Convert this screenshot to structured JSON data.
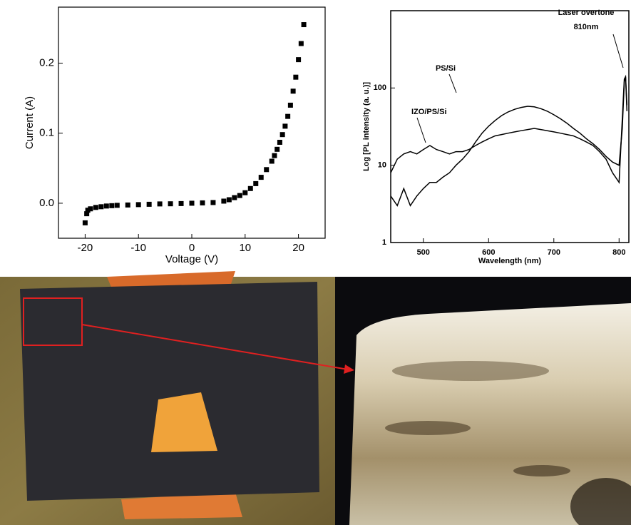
{
  "chart_data": [
    {
      "type": "scatter",
      "x_label": "Voltage (V)",
      "y_label": "Current (A)",
      "x": [
        -20,
        -19.7,
        -19.5,
        -19,
        -18,
        -17,
        -16,
        -15,
        -14,
        -12,
        -10,
        -8,
        -6,
        -4,
        -2,
        0,
        2,
        4,
        6,
        7,
        8,
        9,
        10,
        11,
        12,
        13,
        14,
        15,
        15.5,
        16,
        16.5,
        17,
        17.5,
        18,
        18.5,
        19,
        19.5,
        20,
        20.5,
        21
      ],
      "values": [
        -0.028,
        -0.015,
        -0.01,
        -0.008,
        -0.006,
        -0.005,
        -0.004,
        -0.0035,
        -0.003,
        -0.0025,
        -0.002,
        -0.0015,
        -0.001,
        -0.0008,
        -0.0005,
        0,
        0.0005,
        0.001,
        0.003,
        0.005,
        0.008,
        0.011,
        0.015,
        0.021,
        0.028,
        0.037,
        0.048,
        0.06,
        0.068,
        0.077,
        0.087,
        0.098,
        0.11,
        0.124,
        0.14,
        0.16,
        0.18,
        0.205,
        0.228,
        0.255
      ],
      "color": "#000000",
      "xlim": [
        -25,
        25
      ],
      "ylim": [
        -0.05,
        0.28
      ],
      "xticks": [
        -20,
        -10,
        0,
        10,
        20
      ],
      "yticks": [
        {
          "value": 0,
          "label": "0.0"
        },
        0.1,
        0.2
      ]
    },
    {
      "type": "line",
      "x_label": "Wavelength (nm)",
      "y_label": "Log [PL intensity (a. u.)]",
      "log_y": true,
      "annotations": [
        "Laser overtone",
        "810nm"
      ],
      "x": [
        450,
        460,
        470,
        480,
        490,
        500,
        510,
        520,
        530,
        540,
        550,
        560,
        570,
        580,
        590,
        600,
        610,
        620,
        630,
        640,
        650,
        660,
        670,
        680,
        690,
        700,
        710,
        720,
        730,
        740,
        750,
        760,
        770,
        780,
        790,
        800,
        805,
        808,
        810,
        812
      ],
      "series": [
        {
          "name": "PS/Si",
          "color": "#000000",
          "values": [
            4,
            3,
            5,
            3,
            4,
            5,
            6,
            6,
            7,
            8,
            10,
            12,
            15,
            20,
            26,
            32,
            38,
            44,
            49,
            53,
            56,
            58,
            57,
            54,
            50,
            45,
            40,
            35,
            30,
            26,
            22,
            19,
            16,
            13,
            11,
            10,
            30,
            120,
            140,
            50
          ]
        },
        {
          "name": "IZO/PS/Si",
          "color": "#000000",
          "values": [
            8,
            12,
            14,
            15,
            14,
            16,
            18,
            16,
            15,
            14,
            15,
            15,
            16,
            18,
            20,
            22,
            24,
            25,
            26,
            27,
            28,
            29,
            30,
            29,
            28,
            27,
            26,
            25,
            24,
            22,
            20,
            18,
            15,
            12,
            8,
            6,
            40,
            130,
            140,
            60
          ]
        }
      ],
      "xlim": [
        450,
        815
      ],
      "ylim": [
        1,
        1000
      ],
      "xticks": [
        500,
        600,
        700,
        800
      ],
      "yticks": [
        1,
        10,
        100
      ]
    }
  ]
}
